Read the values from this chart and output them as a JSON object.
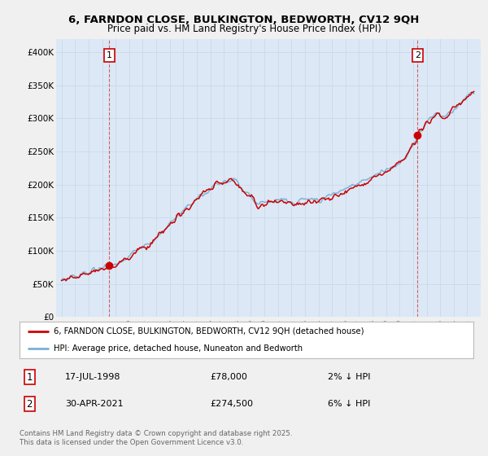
{
  "title_line1": "6, FARNDON CLOSE, BULKINGTON, BEDWORTH, CV12 9QH",
  "title_line2": "Price paid vs. HM Land Registry's House Price Index (HPI)",
  "legend_label1": "6, FARNDON CLOSE, BULKINGTON, BEDWORTH, CV12 9QH (detached house)",
  "legend_label2": "HPI: Average price, detached house, Nuneaton and Bedworth",
  "annotation1_label": "1",
  "annotation1_date": "17-JUL-1998",
  "annotation1_price": "£78,000",
  "annotation1_hpi": "2% ↓ HPI",
  "annotation2_label": "2",
  "annotation2_date": "30-APR-2021",
  "annotation2_price": "£274,500",
  "annotation2_hpi": "6% ↓ HPI",
  "copyright_text": "Contains HM Land Registry data © Crown copyright and database right 2025.\nThis data is licensed under the Open Government Licence v3.0.",
  "line_color_property": "#cc0000",
  "line_color_hpi": "#7ab0d4",
  "ylim": [
    0,
    420000
  ],
  "yticks": [
    0,
    50000,
    100000,
    150000,
    200000,
    250000,
    300000,
    350000,
    400000
  ],
  "ytick_labels": [
    "£0",
    "£50K",
    "£100K",
    "£150K",
    "£200K",
    "£250K",
    "£300K",
    "£350K",
    "£400K"
  ],
  "sale1_year": 1998.54,
  "sale1_value": 78000,
  "sale2_year": 2021.33,
  "sale2_value": 274500,
  "background_color": "#f0f0f0",
  "plot_bg_color": "#dce8f5"
}
